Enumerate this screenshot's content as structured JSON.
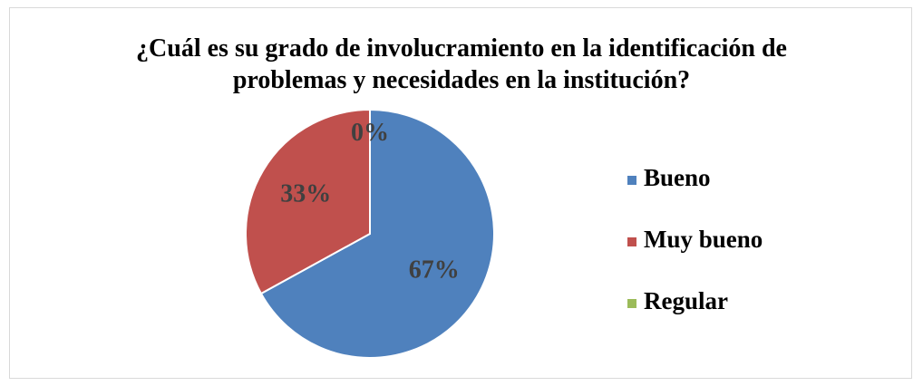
{
  "chart_data": {
    "type": "pie",
    "title": "¿Cuál es su grado de involucramiento en la identificación de problemas y necesidades en la institución?",
    "categories": [
      "Bueno",
      "Muy bueno",
      "Regular"
    ],
    "values": [
      67,
      33,
      0
    ],
    "value_labels": [
      "67%",
      "33%",
      "0%"
    ],
    "colors": [
      "#4f81bd",
      "#c0504d",
      "#9bbb59"
    ],
    "legend": "right"
  }
}
